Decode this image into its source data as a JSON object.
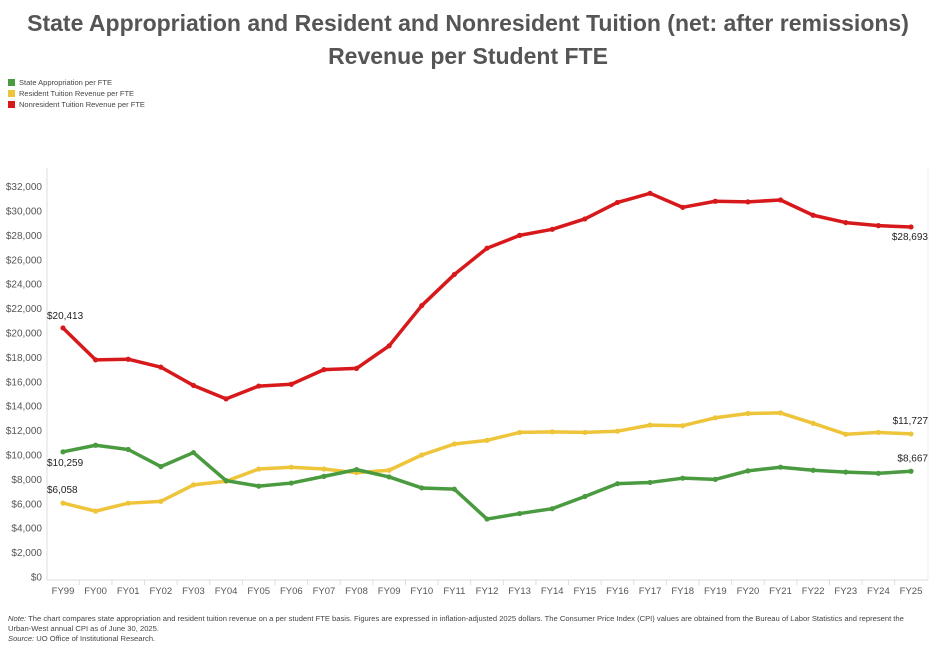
{
  "title_line1": "State Appropriation and Resident and Nonresident Tuition (net: after remissions)",
  "title_line2": "Revenue per Student FTE",
  "legend": [
    {
      "label": "State Appropriation per FTE",
      "color": "#4a9a3f"
    },
    {
      "label": "Resident Tuition Revenue per FTE",
      "color": "#eec53a"
    },
    {
      "label": "Nonresident Tuition Revenue per FTE",
      "color": "#d7191c"
    }
  ],
  "note": {
    "note_label": "Note:",
    "note_text": " The chart compares state appropriation and resident tuition revenue on a per student FTE basis. Figures are expressed in inflation-adjusted 2025 dollars. The Consumer Price Index (CPI) values are obtained from the Bureau of Labor Statistics and represent the Urban-West annual CPI as of June 30, 2025.",
    "source_label": "Source:",
    "source_text": " UO Office of Institutional Research."
  },
  "chart_data": {
    "type": "line",
    "title": "State Appropriation and Resident and Nonresident Tuition (net: after remissions) Revenue per Student FTE",
    "xlabel": "",
    "ylabel": "",
    "ylim": [
      0,
      32000
    ],
    "grid": false,
    "legend_position": "top-left",
    "yticks": [
      "$0",
      "$2,000",
      "$4,000",
      "$6,000",
      "$8,000",
      "$10,000",
      "$12,000",
      "$14,000",
      "$16,000",
      "$18,000",
      "$20,000",
      "$22,000",
      "$24,000",
      "$26,000",
      "$28,000",
      "$30,000",
      "$32,000"
    ],
    "categories": [
      "FY99",
      "FY00",
      "FY01",
      "FY02",
      "FY03",
      "FY04",
      "FY05",
      "FY06",
      "FY07",
      "FY08",
      "FY09",
      "FY10",
      "FY11",
      "FY12",
      "FY13",
      "FY14",
      "FY15",
      "FY16",
      "FY17",
      "FY18",
      "FY19",
      "FY20",
      "FY21",
      "FY22",
      "FY23",
      "FY24",
      "FY25"
    ],
    "series": [
      {
        "name": "Nonresident Tuition Revenue per FTE",
        "color": "#d7191c",
        "values": [
          20413,
          17800,
          17850,
          17200,
          15700,
          14600,
          15650,
          15800,
          17000,
          17100,
          18950,
          22250,
          24800,
          26950,
          28000,
          28500,
          29350,
          30700,
          31450,
          30300,
          30800,
          30750,
          30900,
          29650,
          29050,
          28800,
          28693
        ],
        "labels": {
          "0": "$20,413",
          "26": "$28,693"
        }
      },
      {
        "name": "Resident Tuition Revenue per FTE",
        "color": "#eec53a",
        "values": [
          6058,
          5400,
          6050,
          6200,
          7550,
          7850,
          8850,
          9000,
          8850,
          8550,
          8750,
          10000,
          10900,
          11200,
          11850,
          11900,
          11850,
          11950,
          12450,
          12400,
          13050,
          13400,
          13450,
          12600,
          11700,
          11850,
          11727
        ],
        "labels": {
          "0": "$6,058",
          "26": "$11,727"
        }
      },
      {
        "name": "State Appropriation per FTE",
        "color": "#4a9a3f",
        "values": [
          10259,
          10800,
          10450,
          9050,
          10200,
          7900,
          7450,
          7700,
          8250,
          8800,
          8200,
          7300,
          7200,
          4750,
          5200,
          5600,
          6600,
          7650,
          7750,
          8100,
          8000,
          8700,
          9000,
          8750,
          8600,
          8500,
          8667
        ],
        "labels": {
          "0": "$10,259",
          "26": "$8,667"
        }
      }
    ]
  }
}
